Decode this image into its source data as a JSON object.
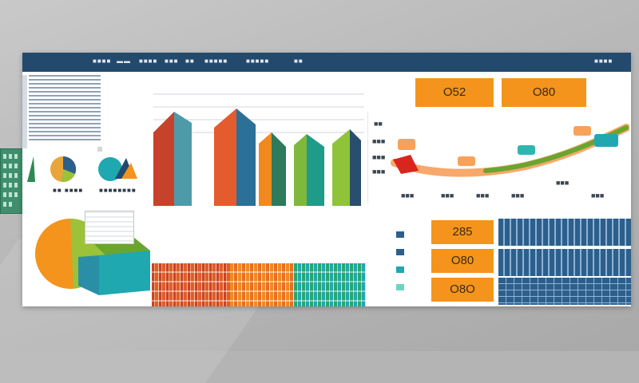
{
  "titlebar": {
    "items": [
      "■■■■",
      "▬▬",
      "■■■■",
      "■■■",
      "■■",
      "■■■■■",
      "■■■■■",
      "■■"
    ],
    "right_label": "■■■■"
  },
  "kpi_top": [
    "O52",
    "O80"
  ],
  "sidebar": {
    "mini_labels": [
      "■■ ■■■■",
      "■■■■■■■■"
    ]
  },
  "line_chart": {
    "y_labels": [
      "■■",
      "■■■",
      "■■■",
      "■■■"
    ],
    "x_labels": [
      "■■■",
      "■■■",
      "■■■",
      "■■■",
      "■■■",
      "■■■"
    ],
    "markers": [
      "",
      "",
      "",
      "",
      "",
      ""
    ]
  },
  "kpi_right": [
    "285",
    "O80",
    "O8O"
  ],
  "colors": {
    "navy": "#234a6d",
    "orange": "#f4941c",
    "red": "#c7422a",
    "teal": "#1fa8b0",
    "green": "#6aa52f",
    "blue_panel": "#2c5f8c",
    "lime": "#9cc23a"
  }
}
